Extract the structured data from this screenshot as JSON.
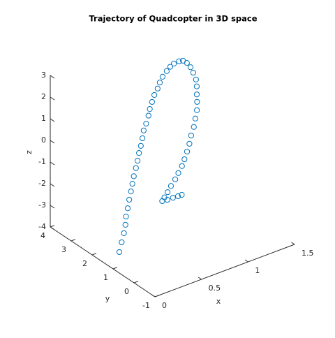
{
  "chart_data": {
    "type": "scatter3d",
    "title": "Trajectory of Quadcopter in 3D space",
    "xlabel": "x",
    "ylabel": "y",
    "zlabel": "z",
    "marker": "circle",
    "color": "#0072bd",
    "x": [
      0,
      0.07,
      0.13,
      0.18,
      0.22,
      0.27,
      0.32,
      0.37,
      0.41,
      0.45,
      0.5,
      0.54,
      0.58,
      0.62,
      0.66,
      0.7,
      0.74,
      0.79,
      0.82,
      0.86,
      0.9,
      0.94,
      0.97,
      1.0,
      1.04,
      1.06,
      1.07,
      1.08,
      1.12,
      1.14,
      1.15,
      1.15,
      1.15,
      1.14,
      1.12,
      1.11,
      1.09,
      1.06,
      1.03,
      0.99,
      0.96,
      0.93,
      0.9,
      0.88,
      0.85,
      0.83,
      0.8,
      0.78,
      0.77,
      0.78,
      0.84,
      0.9,
      0.95,
      0.99
    ],
    "y": [
      0.7,
      0.9,
      1.06,
      1.21,
      1.36,
      1.5,
      1.65,
      1.79,
      1.9,
      2.01,
      2.13,
      2.23,
      2.34,
      2.43,
      2.53,
      2.65,
      2.71,
      2.82,
      2.89,
      2.96,
      3.03,
      3.05,
      3.08,
      3.08,
      3.06,
      2.98,
      2.85,
      2.65,
      2.64,
      2.54,
      2.41,
      2.28,
      2.15,
      2.07,
      1.98,
      1.92,
      1.84,
      1.78,
      1.72,
      1.67,
      1.62,
      1.6,
      1.59,
      1.62,
      1.66,
      1.72,
      1.79,
      1.86,
      1.97,
      2.12,
      2.14,
      2.14,
      2.12,
      2.12
    ],
    "z": [
      -3.03,
      -2.82,
      -2.6,
      -2.39,
      -2.17,
      -1.96,
      -1.74,
      -1.53,
      -1.31,
      -1.1,
      -0.88,
      -0.67,
      -0.45,
      -0.24,
      -0.02,
      0.2,
      0.41,
      0.63,
      0.84,
      1.06,
      1.27,
      1.49,
      1.7,
      1.92,
      2.13,
      2.35,
      2.56,
      2.78,
      2.75,
      2.68,
      2.55,
      2.38,
      2.15,
      1.9,
      1.62,
      1.33,
      1.03,
      0.73,
      0.43,
      0.13,
      -0.17,
      -0.47,
      -0.77,
      -1.07,
      -1.37,
      -1.67,
      -1.97,
      -2.27,
      -2.57,
      -2.85,
      -2.9,
      -2.9,
      -2.9,
      -2.9
    ],
    "xlim": [
      0,
      1.5
    ],
    "ylim": [
      -1,
      4
    ],
    "zlim": [
      -4,
      3
    ],
    "xticks": [
      0,
      0.5,
      1,
      1.5
    ],
    "yticks": [
      -1,
      0,
      1,
      2,
      3,
      4
    ],
    "zticks": [
      -4,
      -3,
      -2,
      -1,
      0,
      1,
      2,
      3
    ]
  }
}
